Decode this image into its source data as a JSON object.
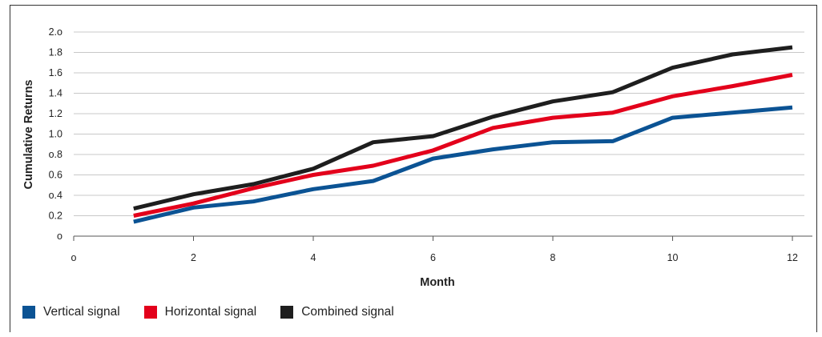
{
  "chart_data": {
    "type": "line",
    "xlabel": "Month",
    "ylabel": "Cumulative Returns",
    "xlim": [
      0,
      12.2
    ],
    "ylim": [
      0,
      2.0
    ],
    "x_ticks": [
      0,
      2,
      4,
      6,
      8,
      10,
      12
    ],
    "x_tick_labels": [
      "o",
      "2",
      "4",
      "6",
      "8",
      "10",
      "12"
    ],
    "y_ticks": [
      0,
      0.2,
      0.4,
      0.6,
      0.8,
      1.0,
      1.2,
      1.4,
      1.6,
      1.8,
      2.0
    ],
    "y_tick_labels": [
      "o",
      "0.2",
      "o.4",
      "0.6",
      "o.8",
      "1.0",
      "1.2",
      "1.4",
      "1.6",
      "1.8",
      "2.o"
    ],
    "grid": "horizontal",
    "legend_position": "bottom-left",
    "x": [
      1,
      2,
      3,
      4,
      5,
      6,
      7,
      8,
      9,
      10,
      11,
      12
    ],
    "series": [
      {
        "name": "Vertical signal",
        "color": "#0b5394",
        "values": [
          0.14,
          0.28,
          0.34,
          0.46,
          0.54,
          0.76,
          0.85,
          0.92,
          0.93,
          1.16,
          1.21,
          1.26
        ]
      },
      {
        "name": "Horizontal signal",
        "color": "#e3001b",
        "values": [
          0.2,
          0.32,
          0.47,
          0.6,
          0.69,
          0.84,
          1.06,
          1.16,
          1.21,
          1.37,
          1.47,
          1.58
        ]
      },
      {
        "name": "Combined signal",
        "color": "#1e1e1e",
        "values": [
          0.27,
          0.41,
          0.51,
          0.66,
          0.92,
          0.98,
          1.17,
          1.32,
          1.41,
          1.65,
          1.78,
          1.85
        ]
      }
    ]
  }
}
